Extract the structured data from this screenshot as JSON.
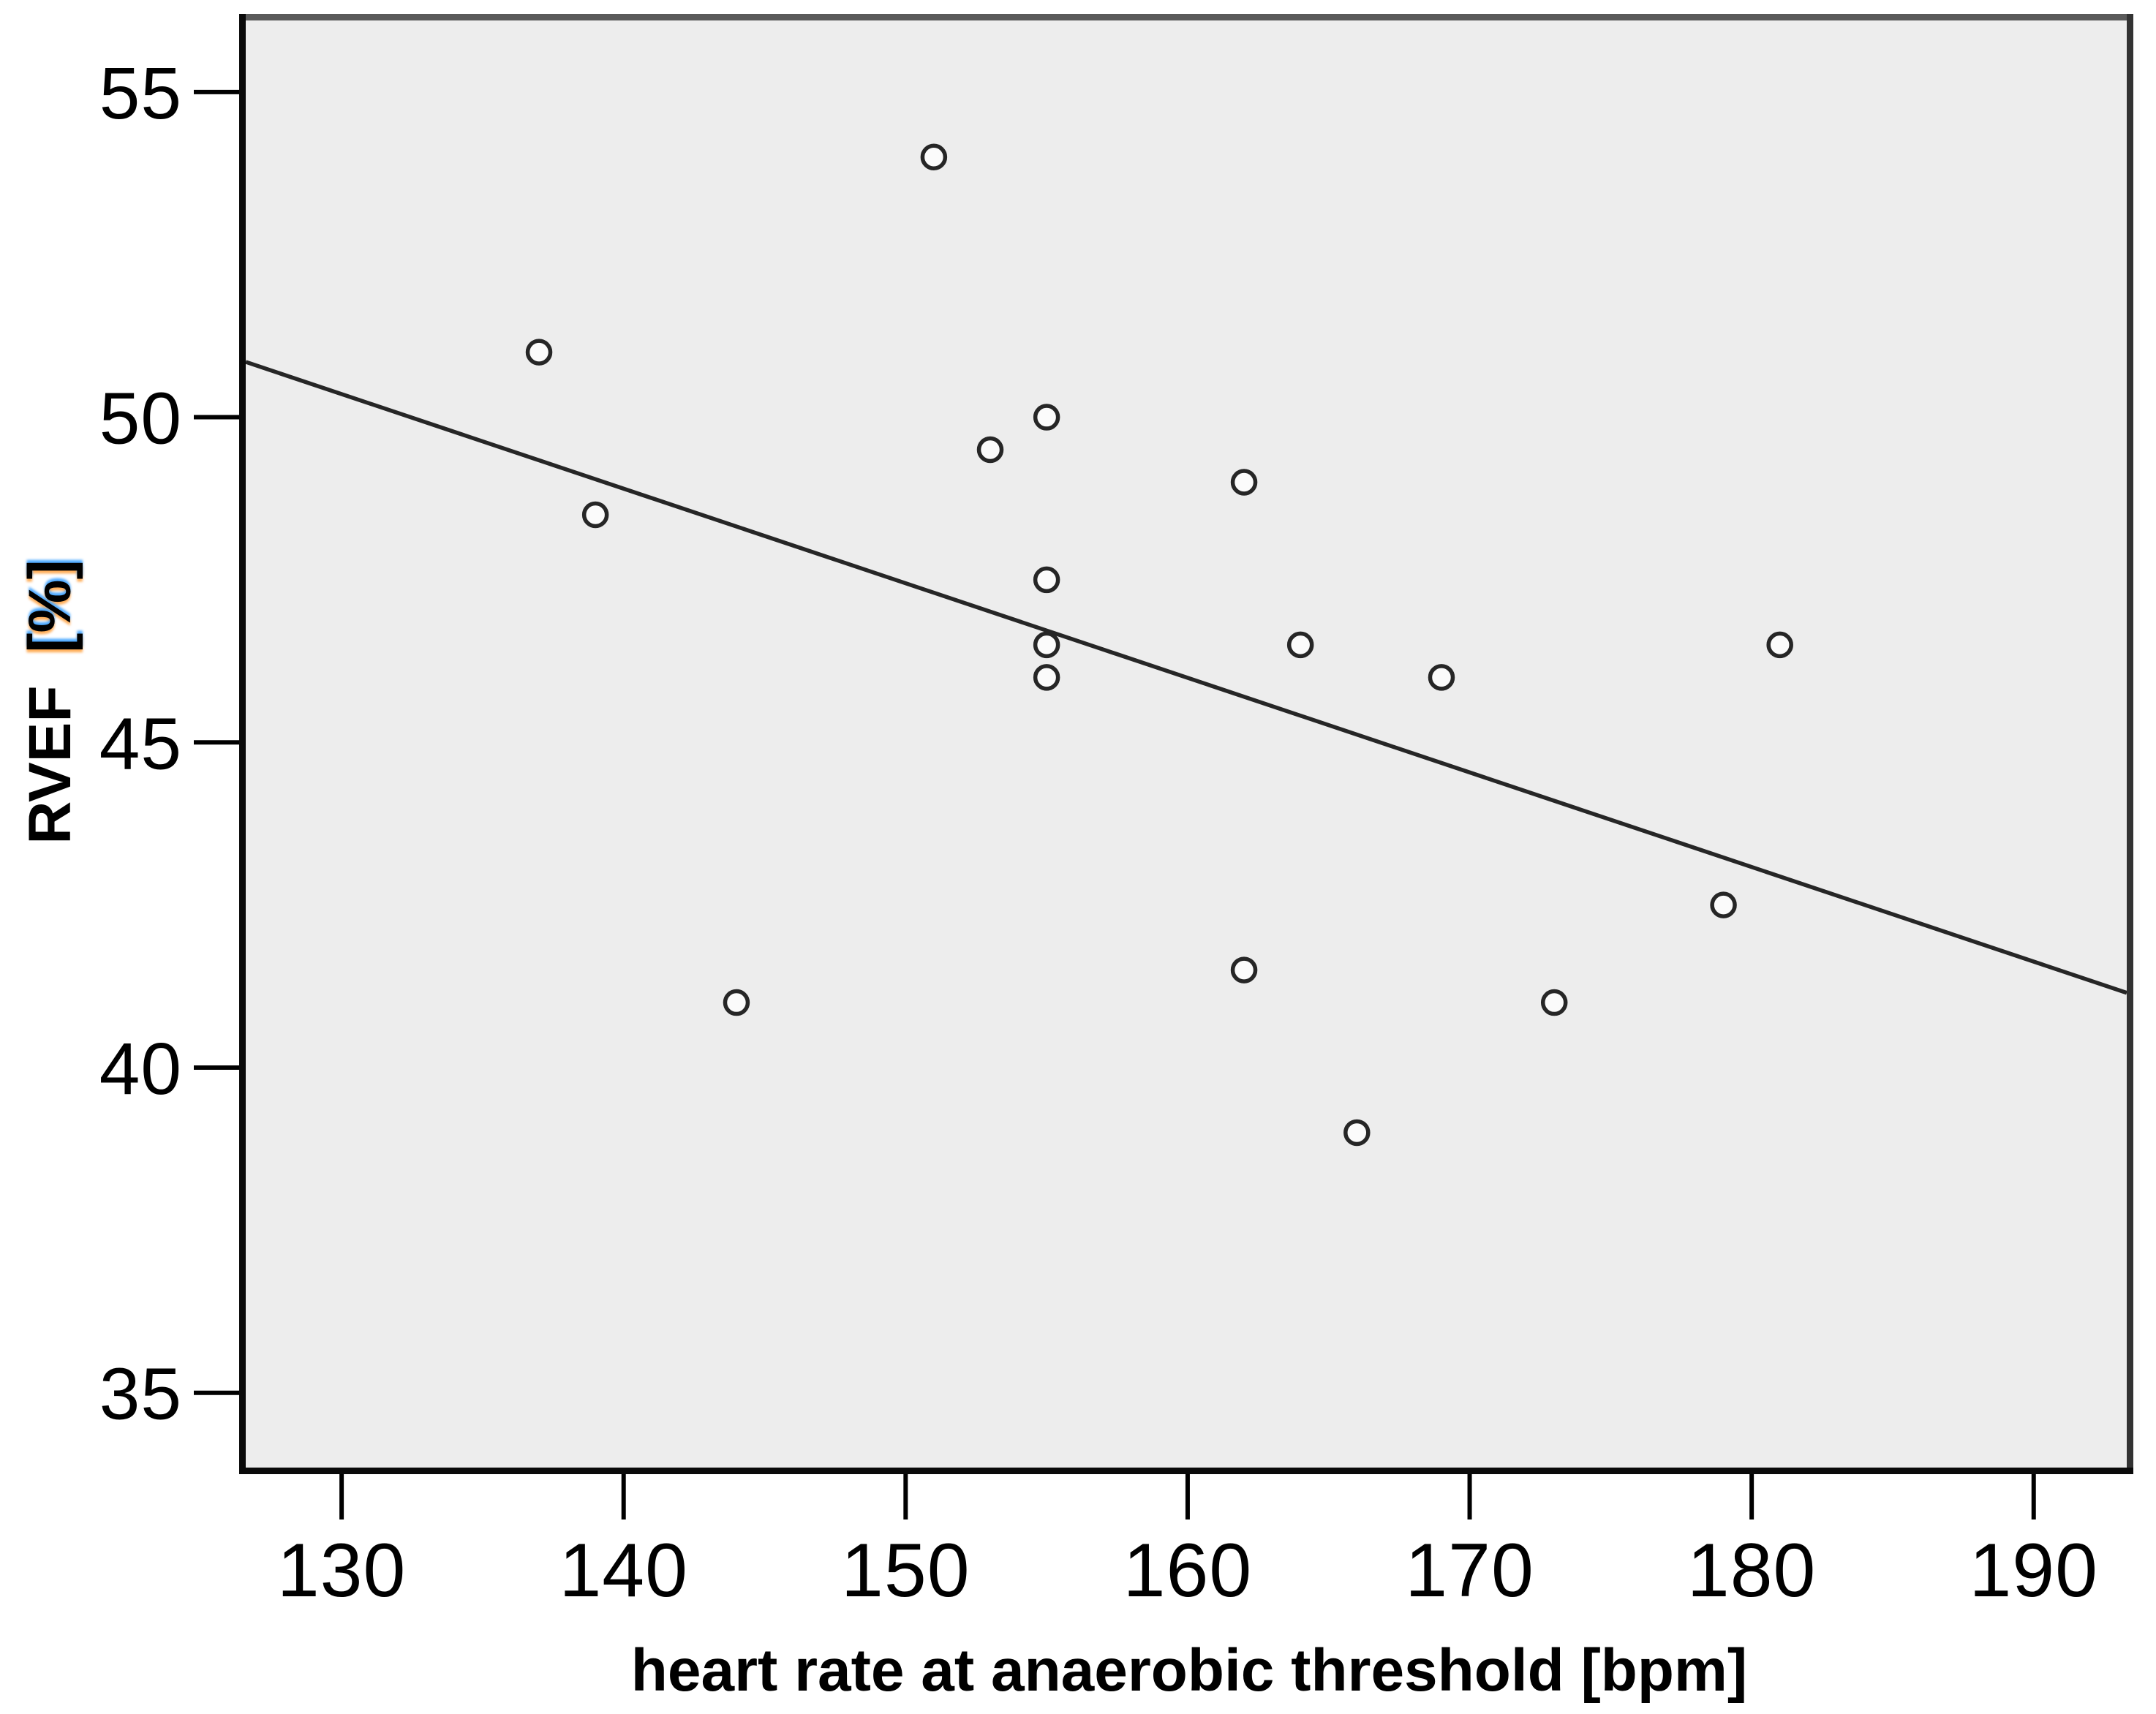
{
  "figure": {
    "background": "#ffffff",
    "plot_background": "#EDEDED",
    "border_top_color": "#5a5a5a",
    "border_right_color": "#333333",
    "border_color": "#0a0a0a",
    "tick_color": "#000000",
    "marker_stroke": "#262626",
    "marker_fill": "#fbfbfb",
    "fit_line_color": "#262626"
  },
  "chart_data": {
    "type": "scatter",
    "title": "",
    "xlabel": "heart rate at anaerobic threshold [bpm]",
    "ylabel": "RVEF [%]",
    "ylabel_main": "RVEF",
    "ylabel_unit": "[%]",
    "x_ticks": [
      130,
      140,
      150,
      160,
      170,
      180,
      190
    ],
    "y_ticks": [
      35,
      40,
      45,
      50,
      55
    ],
    "xlim": [
      126.6,
      193.3
    ],
    "ylim": [
      33.85,
      56.1
    ],
    "grid": false,
    "legend_position": "none",
    "points": [
      {
        "x": 137,
        "y": 51
      },
      {
        "x": 139,
        "y": 48.5
      },
      {
        "x": 144,
        "y": 41
      },
      {
        "x": 151,
        "y": 54
      },
      {
        "x": 153,
        "y": 49.5
      },
      {
        "x": 155,
        "y": 50
      },
      {
        "x": 155,
        "y": 47.5
      },
      {
        "x": 155,
        "y": 46.5
      },
      {
        "x": 155,
        "y": 46
      },
      {
        "x": 162,
        "y": 49
      },
      {
        "x": 162,
        "y": 41.5
      },
      {
        "x": 164,
        "y": 46.5
      },
      {
        "x": 166,
        "y": 39
      },
      {
        "x": 169,
        "y": 46
      },
      {
        "x": 173,
        "y": 41
      },
      {
        "x": 179,
        "y": 42.5
      },
      {
        "x": 181,
        "y": 46.5
      }
    ],
    "fit_line": {
      "x1": 126.6,
      "y1": 50.85,
      "x2": 193.3,
      "y2": 41.15
    }
  }
}
